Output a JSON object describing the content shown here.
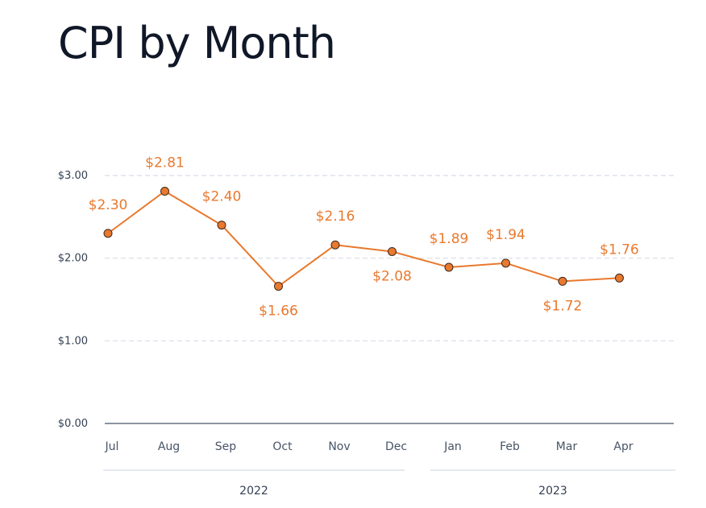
{
  "chart_data": {
    "type": "line",
    "title": "CPI by Month",
    "categories": [
      "Jul",
      "Aug",
      "Sep",
      "Oct",
      "Nov",
      "Dec",
      "Jan",
      "Feb",
      "Mar",
      "Apr"
    ],
    "groups": [
      {
        "label": "2022",
        "from": 0,
        "to": 5
      },
      {
        "label": "2023",
        "from": 6,
        "to": 9
      }
    ],
    "series": [
      {
        "values": [
          2.3,
          2.81,
          2.4,
          1.66,
          2.16,
          2.08,
          1.89,
          1.94,
          1.72,
          1.76
        ],
        "labels": [
          "$2.30",
          "$2.81",
          "$2.40",
          "$1.66",
          "$2.16",
          "$2.08",
          "$1.89",
          "$1.94",
          "$1.72",
          "$1.76"
        ],
        "label_positions": [
          "above",
          "above",
          "above",
          "below",
          "above",
          "below",
          "above",
          "above",
          "below",
          "above"
        ]
      }
    ],
    "ylim": [
      0,
      3
    ],
    "yticks": [
      {
        "value": 0,
        "label": "$0.00"
      },
      {
        "value": 1,
        "label": "$1.00"
      },
      {
        "value": 2,
        "label": "$2.00"
      },
      {
        "value": 3,
        "label": "$3.00"
      }
    ],
    "grid": true,
    "colors": {
      "line": "#e8792e",
      "marker_fill": "#e8792e",
      "marker_stroke": "#3d2a1e",
      "grid": "#d8dbe6",
      "axis": "#475467",
      "group_line": "#d8dbe6"
    }
  }
}
